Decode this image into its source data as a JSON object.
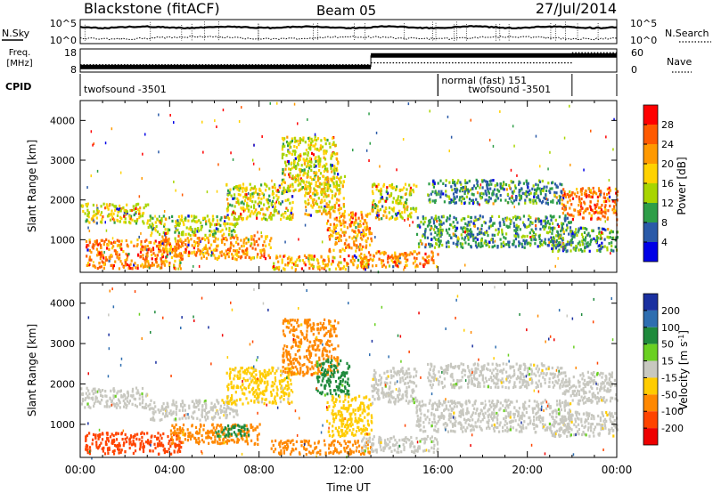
{
  "header": {
    "station": "Blackstone (fitACF)",
    "beam": "Beam 05",
    "date": "27/Jul/2014"
  },
  "summary_panel": {
    "nsky_label": "N.Sky",
    "nsearch_label": "N.Search",
    "freq_label_line1": "Freq.",
    "freq_label_line2": "[MHz]",
    "nave_label": "Nave",
    "cpid_label": "CPID",
    "noise_ticks": [
      "10^5",
      "10^0"
    ],
    "freq_ticks": [
      "18",
      "8"
    ],
    "nave_ticks": [
      "60",
      "0"
    ],
    "cpid_segments": [
      {
        "start_hour": 0,
        "end_hour": 16,
        "line1": "twofsound -3501",
        "line2": ""
      },
      {
        "start_hour": 16,
        "end_hour": 22,
        "line1": "normal (fast) 151",
        "line2": "twofsound -3501"
      }
    ],
    "freq_profile": [
      {
        "start_hour": 0,
        "end_hour": 13,
        "mhz": 10.2
      },
      {
        "start_hour": 13,
        "end_hour": 24,
        "mhz": 15.2
      }
    ],
    "nave_profile": [
      {
        "start_hour": 0,
        "end_hour": 13,
        "value": 19
      },
      {
        "start_hour": 13,
        "end_hour": 22,
        "value": 24
      },
      {
        "start_hour": 22,
        "end_hour": 24,
        "value": 50
      }
    ]
  },
  "power_colorbar": {
    "label": "Power [dB]",
    "ticks": [
      "28",
      "24",
      "20",
      "16",
      "12",
      "8",
      "4"
    ],
    "colors": [
      "#ff0000",
      "#ff5a00",
      "#ff9900",
      "#ffd200",
      "#a8d500",
      "#2e9e48",
      "#2a5aa8",
      "#0000e6"
    ]
  },
  "velocity_colorbar": {
    "label": "Velocity [m s",
    "label_exp": "-1",
    "label_end": "]",
    "ticks": [
      "200",
      "100",
      "50",
      "15",
      "-15",
      "-50",
      "-100",
      "-200"
    ],
    "colors": [
      "#1a30a0",
      "#2e6eb0",
      "#1f8a3c",
      "#6ad022",
      "#c8c8c0",
      "#ffcc00",
      "#ff8800",
      "#ff4400",
      "#ee0000"
    ]
  },
  "chart_data": [
    {
      "type": "heatmap",
      "title": "",
      "xlabel": "",
      "ylabel": "Slant Range [km]",
      "x_range_hours": [
        0,
        24
      ],
      "ylim": [
        180,
        4500
      ],
      "y_ticks": [
        1000,
        2000,
        3000,
        4000
      ],
      "quantity": "Power [dB]",
      "value_range": [
        0,
        30
      ],
      "echo_regions": [
        {
          "t0": 0.0,
          "t1": 3.0,
          "r0": 1400,
          "r1": 1900,
          "value": 14
        },
        {
          "t0": 0.2,
          "t1": 4.5,
          "r0": 260,
          "r1": 1000,
          "value": 22
        },
        {
          "t0": 3.5,
          "t1": 8.5,
          "r0": 500,
          "r1": 1100,
          "value": 20
        },
        {
          "t0": 3.0,
          "t1": 7.0,
          "r0": 1100,
          "r1": 1600,
          "value": 12
        },
        {
          "t0": 6.5,
          "t1": 9.5,
          "r0": 1500,
          "r1": 2400,
          "value": 14
        },
        {
          "t0": 9.0,
          "t1": 11.5,
          "r0": 2200,
          "r1": 3600,
          "value": 14
        },
        {
          "t0": 10.0,
          "t1": 11.8,
          "r0": 1600,
          "r1": 2600,
          "value": 17
        },
        {
          "t0": 11.0,
          "t1": 13.0,
          "r0": 700,
          "r1": 1700,
          "value": 20
        },
        {
          "t0": 8.5,
          "t1": 13.0,
          "r0": 250,
          "r1": 600,
          "value": 18
        },
        {
          "t0": 12.5,
          "t1": 16.0,
          "r0": 300,
          "r1": 700,
          "value": 21
        },
        {
          "t0": 13.0,
          "t1": 15.0,
          "r0": 1500,
          "r1": 2400,
          "value": 14
        },
        {
          "t0": 15.5,
          "t1": 21.5,
          "r0": 1900,
          "r1": 2500,
          "value": 7
        },
        {
          "t0": 15.0,
          "t1": 22.0,
          "r0": 800,
          "r1": 1600,
          "value": 8
        },
        {
          "t0": 21.5,
          "t1": 24.0,
          "r0": 1500,
          "r1": 2300,
          "value": 22
        },
        {
          "t0": 21.0,
          "t1": 24.0,
          "r0": 700,
          "r1": 1300,
          "value": 8
        }
      ]
    },
    {
      "type": "heatmap",
      "title": "",
      "xlabel": "Time UT",
      "ylabel": "Slant Range [km]",
      "x_range_hours": [
        0,
        24
      ],
      "x_ticks": [
        "00:00",
        "04:00",
        "08:00",
        "12:00",
        "16:00",
        "20:00",
        "00:00"
      ],
      "ylim": [
        180,
        4500
      ],
      "y_ticks": [
        1000,
        2000,
        3000,
        4000
      ],
      "quantity": "Velocity [m s^-1]",
      "value_range": [
        -250,
        250
      ],
      "echo_regions": [
        {
          "t0": 0.0,
          "t1": 3.0,
          "r0": 1400,
          "r1": 1900,
          "value": 0
        },
        {
          "t0": 0.2,
          "t1": 4.5,
          "r0": 260,
          "r1": 800,
          "value": -150
        },
        {
          "t0": 4.0,
          "t1": 8.0,
          "r0": 500,
          "r1": 1000,
          "value": -60
        },
        {
          "t0": 6.0,
          "t1": 7.5,
          "r0": 700,
          "r1": 1000,
          "value": 60
        },
        {
          "t0": 3.0,
          "t1": 7.0,
          "r0": 1100,
          "r1": 1600,
          "value": 0
        },
        {
          "t0": 6.5,
          "t1": 9.5,
          "r0": 1500,
          "r1": 2400,
          "value": -30
        },
        {
          "t0": 9.0,
          "t1": 11.5,
          "r0": 2200,
          "r1": 3600,
          "value": -60
        },
        {
          "t0": 10.5,
          "t1": 12.0,
          "r0": 1700,
          "r1": 2600,
          "value": 55
        },
        {
          "t0": 11.0,
          "t1": 13.0,
          "r0": 700,
          "r1": 1700,
          "value": -40
        },
        {
          "t0": 8.5,
          "t1": 13.0,
          "r0": 250,
          "r1": 600,
          "value": -70
        },
        {
          "t0": 12.5,
          "t1": 16.0,
          "r0": 300,
          "r1": 700,
          "value": 0
        },
        {
          "t0": 13.0,
          "t1": 15.0,
          "r0": 1500,
          "r1": 2400,
          "value": 0
        },
        {
          "t0": 15.5,
          "t1": 21.5,
          "r0": 1900,
          "r1": 2500,
          "value": 0
        },
        {
          "t0": 15.0,
          "t1": 22.0,
          "r0": 800,
          "r1": 1600,
          "value": 0
        },
        {
          "t0": 21.5,
          "t1": 24.0,
          "r0": 1500,
          "r1": 2300,
          "value": 0
        },
        {
          "t0": 21.0,
          "t1": 24.0,
          "r0": 700,
          "r1": 1300,
          "value": 0
        }
      ]
    }
  ]
}
